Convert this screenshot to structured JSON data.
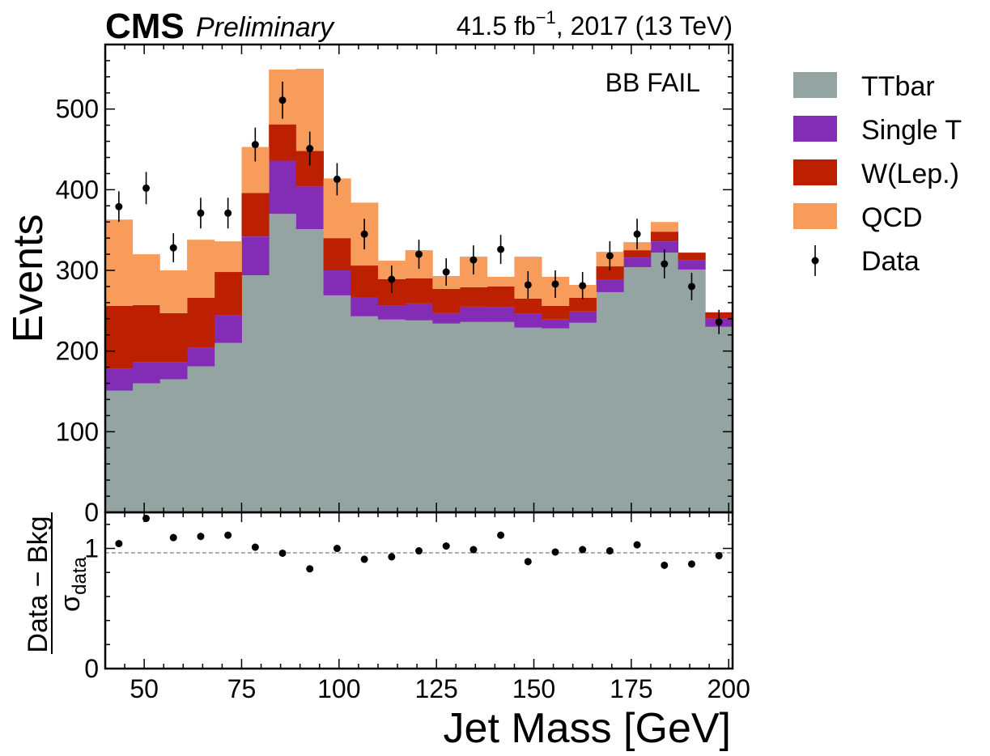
{
  "header": {
    "experiment": "CMS",
    "status": "Preliminary",
    "lumi_value": "41.5 fb",
    "lumi_exp": "−1",
    "lumi_rest": ", 2017 (13 TeV)"
  },
  "chart_data": [
    {
      "type": "bar",
      "subtype": "stacked-histogram",
      "annotation": "BB FAIL",
      "ylabel": "Events",
      "xlabel": "Jet Mass [GeV]",
      "xlim": [
        40,
        201
      ],
      "ylim": [
        0,
        580
      ],
      "xticks": [
        50,
        75,
        100,
        125,
        150,
        175,
        200
      ],
      "yticks": [
        0,
        100,
        200,
        300,
        400,
        500
      ],
      "bin_edges": [
        40,
        47,
        54,
        61,
        68,
        75,
        82,
        89,
        96,
        103,
        110,
        117,
        124,
        131,
        138,
        145,
        152,
        159,
        166,
        173,
        180,
        187,
        194,
        201
      ],
      "series": [
        {
          "name": "TTbar",
          "color": "#94a4a2",
          "values": [
            151,
            160,
            165,
            181,
            210,
            294,
            370,
            351,
            269,
            243,
            239,
            238,
            234,
            236,
            236,
            229,
            228,
            235,
            273,
            304,
            322,
            301,
            230
          ]
        },
        {
          "name": "Single T",
          "color": "#832db6",
          "values": [
            27,
            26,
            21,
            23,
            34,
            48,
            66,
            53,
            31,
            23,
            17,
            21,
            13,
            19,
            18,
            17,
            11,
            14,
            16,
            12,
            14,
            12,
            10
          ]
        },
        {
          "name": "W(Lep.)",
          "color": "#bd1f01",
          "values": [
            78,
            71,
            61,
            62,
            54,
            54,
            45,
            44,
            40,
            40,
            33,
            31,
            30,
            24,
            26,
            19,
            17,
            17,
            16,
            9,
            12,
            9,
            8
          ]
        },
        {
          "name": "QCD",
          "color": "#f89c5c",
          "values": [
            107,
            63,
            53,
            72,
            38,
            57,
            68,
            102,
            74,
            78,
            23,
            35,
            16,
            38,
            12,
            52,
            36,
            16,
            18,
            10,
            12,
            0,
            0
          ]
        }
      ],
      "data": {
        "name": "Data",
        "x": [
          43.5,
          50.5,
          57.5,
          64.5,
          71.5,
          78.5,
          85.5,
          92.5,
          99.5,
          106.5,
          113.5,
          120.5,
          127.5,
          134.5,
          141.5,
          148.5,
          155.5,
          162.5,
          169.5,
          176.5,
          183.5,
          190.5,
          197.5
        ],
        "y": [
          379,
          402,
          328,
          371,
          371,
          456,
          511,
          451,
          413,
          345,
          289,
          320,
          298,
          313,
          326,
          282,
          283,
          281,
          318,
          345,
          308,
          280,
          236
        ],
        "yerr": [
          19,
          20,
          18,
          19,
          19,
          21,
          23,
          21,
          20,
          19,
          17,
          18,
          17,
          18,
          18,
          17,
          17,
          17,
          18,
          19,
          18,
          17,
          15
        ]
      }
    },
    {
      "type": "scatter",
      "ylabel": "Data − Bkg",
      "ylabel_sub": "σ",
      "ylabel_subscript": "data",
      "ylim": [
        0,
        1.3
      ],
      "yticks": [
        0,
        1
      ],
      "reference_line": 1,
      "x": [
        43.5,
        50.5,
        57.5,
        64.5,
        71.5,
        78.5,
        85.5,
        92.5,
        99.5,
        106.5,
        113.5,
        120.5,
        127.5,
        134.5,
        141.5,
        148.5,
        155.5,
        162.5,
        169.5,
        176.5,
        183.5,
        190.5,
        197.5
      ],
      "y": [
        1.04,
        1.25,
        1.09,
        1.1,
        1.11,
        1.01,
        0.96,
        0.83,
        1.0,
        0.91,
        0.93,
        0.98,
        1.02,
        0.99,
        1.11,
        0.89,
        0.97,
        0.99,
        0.98,
        1.03,
        0.86,
        0.87,
        0.94
      ],
      "yerr": [
        0.03,
        0.03,
        0.03,
        0.03,
        0.03,
        0.03,
        0.02,
        0.02,
        0.03,
        0.03,
        0.03,
        0.03,
        0.03,
        0.03,
        0.03,
        0.03,
        0.03,
        0.03,
        0.03,
        0.03,
        0.03,
        0.03,
        0.03
      ]
    }
  ]
}
